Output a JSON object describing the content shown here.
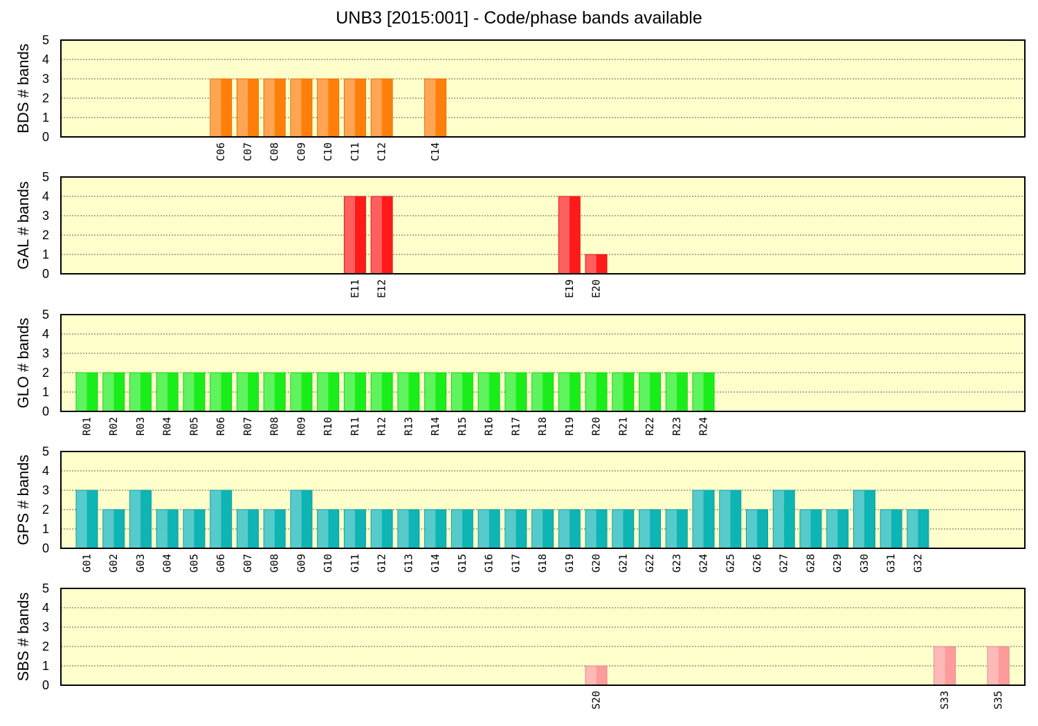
{
  "title": "UNB3 [2015:001] - Code/phase bands available",
  "colors": {
    "plot_background": "#ffffcc",
    "grid": "#555555",
    "BDS": "#ff7f0a",
    "GAL": "#ff1a1a",
    "GLO": "#1aee1a",
    "GPS": "#0fb4b4",
    "SBS": "#ff9b9b"
  },
  "chart_data": [
    {
      "type": "bar",
      "ylabel": "BDS # bands",
      "ylim": [
        0,
        5
      ],
      "yticks": [
        "0",
        "1",
        "2",
        "3",
        "4",
        "5"
      ],
      "grid": true,
      "color": "#ff7f0a",
      "points": [
        {
          "label": "C06",
          "slot": 6,
          "value": 3
        },
        {
          "label": "C07",
          "slot": 7,
          "value": 3
        },
        {
          "label": "C08",
          "slot": 8,
          "value": 3
        },
        {
          "label": "C09",
          "slot": 9,
          "value": 3
        },
        {
          "label": "C10",
          "slot": 10,
          "value": 3
        },
        {
          "label": "C11",
          "slot": 11,
          "value": 3
        },
        {
          "label": "C12",
          "slot": 12,
          "value": 3
        },
        {
          "label": "C14",
          "slot": 14,
          "value": 3
        }
      ]
    },
    {
      "type": "bar",
      "ylabel": "GAL # bands",
      "ylim": [
        0,
        5
      ],
      "yticks": [
        "0",
        "1",
        "2",
        "3",
        "4",
        "5"
      ],
      "grid": true,
      "color": "#ff1a1a",
      "points": [
        {
          "label": "E11",
          "slot": 11,
          "value": 4
        },
        {
          "label": "E12",
          "slot": 12,
          "value": 4
        },
        {
          "label": "E19",
          "slot": 19,
          "value": 4
        },
        {
          "label": "E20",
          "slot": 20,
          "value": 1
        }
      ]
    },
    {
      "type": "bar",
      "ylabel": "GLO # bands",
      "ylim": [
        0,
        5
      ],
      "yticks": [
        "0",
        "1",
        "2",
        "3",
        "4",
        "5"
      ],
      "grid": true,
      "color": "#1aee1a",
      "points": [
        {
          "label": "R01",
          "slot": 1,
          "value": 2
        },
        {
          "label": "R02",
          "slot": 2,
          "value": 2
        },
        {
          "label": "R03",
          "slot": 3,
          "value": 2
        },
        {
          "label": "R04",
          "slot": 4,
          "value": 2
        },
        {
          "label": "R05",
          "slot": 5,
          "value": 2
        },
        {
          "label": "R06",
          "slot": 6,
          "value": 2
        },
        {
          "label": "R07",
          "slot": 7,
          "value": 2
        },
        {
          "label": "R08",
          "slot": 8,
          "value": 2
        },
        {
          "label": "R09",
          "slot": 9,
          "value": 2
        },
        {
          "label": "R10",
          "slot": 10,
          "value": 2
        },
        {
          "label": "R11",
          "slot": 11,
          "value": 2
        },
        {
          "label": "R12",
          "slot": 12,
          "value": 2
        },
        {
          "label": "R13",
          "slot": 13,
          "value": 2
        },
        {
          "label": "R14",
          "slot": 14,
          "value": 2
        },
        {
          "label": "R15",
          "slot": 15,
          "value": 2
        },
        {
          "label": "R16",
          "slot": 16,
          "value": 2
        },
        {
          "label": "R17",
          "slot": 17,
          "value": 2
        },
        {
          "label": "R18",
          "slot": 18,
          "value": 2
        },
        {
          "label": "R19",
          "slot": 19,
          "value": 2
        },
        {
          "label": "R20",
          "slot": 20,
          "value": 2
        },
        {
          "label": "R21",
          "slot": 21,
          "value": 2
        },
        {
          "label": "R22",
          "slot": 22,
          "value": 2
        },
        {
          "label": "R23",
          "slot": 23,
          "value": 2
        },
        {
          "label": "R24",
          "slot": 24,
          "value": 2
        }
      ]
    },
    {
      "type": "bar",
      "ylabel": "GPS # bands",
      "ylim": [
        0,
        5
      ],
      "yticks": [
        "0",
        "1",
        "2",
        "3",
        "4",
        "5"
      ],
      "grid": true,
      "color": "#0fb4b4",
      "points": [
        {
          "label": "G01",
          "slot": 1,
          "value": 3
        },
        {
          "label": "G02",
          "slot": 2,
          "value": 2
        },
        {
          "label": "G03",
          "slot": 3,
          "value": 3
        },
        {
          "label": "G04",
          "slot": 4,
          "value": 2
        },
        {
          "label": "G05",
          "slot": 5,
          "value": 2
        },
        {
          "label": "G06",
          "slot": 6,
          "value": 3
        },
        {
          "label": "G07",
          "slot": 7,
          "value": 2
        },
        {
          "label": "G08",
          "slot": 8,
          "value": 2
        },
        {
          "label": "G09",
          "slot": 9,
          "value": 3
        },
        {
          "label": "G10",
          "slot": 10,
          "value": 2
        },
        {
          "label": "G11",
          "slot": 11,
          "value": 2
        },
        {
          "label": "G12",
          "slot": 12,
          "value": 2
        },
        {
          "label": "G13",
          "slot": 13,
          "value": 2
        },
        {
          "label": "G14",
          "slot": 14,
          "value": 2
        },
        {
          "label": "G15",
          "slot": 15,
          "value": 2
        },
        {
          "label": "G16",
          "slot": 16,
          "value": 2
        },
        {
          "label": "G17",
          "slot": 17,
          "value": 2
        },
        {
          "label": "G18",
          "slot": 18,
          "value": 2
        },
        {
          "label": "G19",
          "slot": 19,
          "value": 2
        },
        {
          "label": "G20",
          "slot": 20,
          "value": 2
        },
        {
          "label": "G21",
          "slot": 21,
          "value": 2
        },
        {
          "label": "G22",
          "slot": 22,
          "value": 2
        },
        {
          "label": "G23",
          "slot": 23,
          "value": 2
        },
        {
          "label": "G24",
          "slot": 24,
          "value": 3
        },
        {
          "label": "G25",
          "slot": 25,
          "value": 3
        },
        {
          "label": "G26",
          "slot": 26,
          "value": 2
        },
        {
          "label": "G27",
          "slot": 27,
          "value": 3
        },
        {
          "label": "G28",
          "slot": 28,
          "value": 2
        },
        {
          "label": "G29",
          "slot": 29,
          "value": 2
        },
        {
          "label": "G30",
          "slot": 30,
          "value": 3
        },
        {
          "label": "G31",
          "slot": 31,
          "value": 2
        },
        {
          "label": "G32",
          "slot": 32,
          "value": 2
        }
      ]
    },
    {
      "type": "bar",
      "ylabel": "SBS # bands",
      "ylim": [
        0,
        5
      ],
      "yticks": [
        "0",
        "1",
        "2",
        "3",
        "4",
        "5"
      ],
      "grid": true,
      "color": "#ff9b9b",
      "points": [
        {
          "label": "S20",
          "slot": 20,
          "value": 1
        },
        {
          "label": "S33",
          "slot": 33,
          "value": 2
        },
        {
          "label": "S35",
          "slot": 35,
          "value": 2
        }
      ]
    }
  ]
}
